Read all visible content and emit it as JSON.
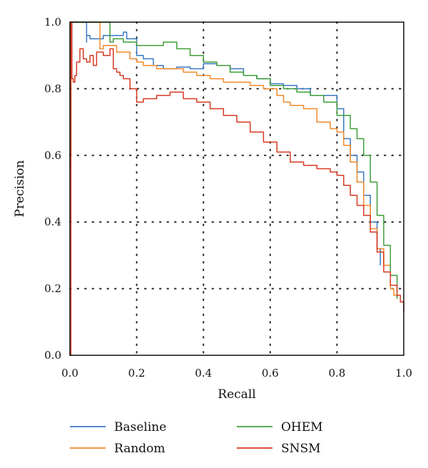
{
  "chart_data": {
    "type": "line",
    "title": "",
    "xlabel": "Recall",
    "ylabel": "Precision",
    "xlim": [
      0.0,
      1.0
    ],
    "ylim": [
      0.0,
      1.0
    ],
    "xticks": [
      "0.0",
      "0.2",
      "0.4",
      "0.6",
      "0.8",
      "1.0"
    ],
    "yticks": [
      "0.0",
      "0.2",
      "0.4",
      "0.6",
      "0.8",
      "1.0"
    ],
    "xtick_values": [
      0.0,
      0.2,
      0.4,
      0.6,
      0.8,
      1.0
    ],
    "ytick_values": [
      0.0,
      0.2,
      0.4,
      0.6,
      0.8,
      1.0
    ],
    "grid": true,
    "grid_style": "dotted",
    "legend_position": "bottom",
    "series": [
      {
        "name": "Baseline",
        "color": "#3a78c3",
        "x": [
          0.0,
          0.002,
          0.005,
          0.04,
          0.05,
          0.05,
          0.06,
          0.1,
          0.15,
          0.16,
          0.17,
          0.2,
          0.22,
          0.25,
          0.28,
          0.32,
          0.36,
          0.4,
          0.44,
          0.48,
          0.52,
          0.56,
          0.6,
          0.64,
          0.68,
          0.72,
          0.76,
          0.8,
          0.82,
          0.84,
          0.86,
          0.88,
          0.9,
          0.92,
          0.93
        ],
        "y": [
          0.58,
          1.0,
          1.0,
          1.0,
          0.94,
          0.96,
          0.95,
          0.96,
          0.96,
          0.97,
          0.95,
          0.9,
          0.89,
          0.87,
          0.86,
          0.865,
          0.86,
          0.875,
          0.87,
          0.86,
          0.84,
          0.83,
          0.815,
          0.81,
          0.8,
          0.78,
          0.78,
          0.74,
          0.65,
          0.6,
          0.55,
          0.48,
          0.4,
          0.32,
          0.27
        ]
      },
      {
        "name": "Random",
        "color": "#f08a2c",
        "x": [
          0.0,
          0.003,
          0.006,
          0.085,
          0.09,
          0.1,
          0.14,
          0.18,
          0.2,
          0.22,
          0.26,
          0.3,
          0.34,
          0.38,
          0.42,
          0.46,
          0.5,
          0.54,
          0.58,
          0.62,
          0.64,
          0.66,
          0.7,
          0.74,
          0.78,
          0.8,
          0.82,
          0.84,
          0.86,
          0.88,
          0.9,
          0.92,
          0.94,
          0.96,
          0.97,
          0.98
        ],
        "y": [
          0.6,
          1.0,
          1.0,
          1.0,
          0.92,
          0.93,
          0.91,
          0.89,
          0.88,
          0.87,
          0.86,
          0.86,
          0.85,
          0.84,
          0.83,
          0.82,
          0.82,
          0.81,
          0.8,
          0.78,
          0.76,
          0.75,
          0.74,
          0.7,
          0.68,
          0.67,
          0.63,
          0.58,
          0.52,
          0.45,
          0.38,
          0.32,
          0.27,
          0.2,
          0.18,
          0.17
        ]
      },
      {
        "name": "OHEM",
        "color": "#3f9e3a",
        "x": [
          0.0,
          0.003,
          0.006,
          0.11,
          0.12,
          0.13,
          0.16,
          0.2,
          0.24,
          0.28,
          0.32,
          0.36,
          0.4,
          0.44,
          0.48,
          0.52,
          0.56,
          0.6,
          0.64,
          0.68,
          0.72,
          0.76,
          0.8,
          0.84,
          0.86,
          0.88,
          0.9,
          0.92,
          0.94,
          0.96,
          0.98
        ],
        "y": [
          0.6,
          1.0,
          1.0,
          1.0,
          0.94,
          0.95,
          0.94,
          0.93,
          0.93,
          0.94,
          0.92,
          0.9,
          0.88,
          0.87,
          0.85,
          0.84,
          0.83,
          0.81,
          0.8,
          0.79,
          0.78,
          0.76,
          0.72,
          0.68,
          0.65,
          0.6,
          0.52,
          0.42,
          0.33,
          0.24,
          0.17
        ]
      },
      {
        "name": "SNSM",
        "color": "#d63a24",
        "x": [
          0.0,
          0.003,
          0.006,
          0.01,
          0.015,
          0.02,
          0.03,
          0.04,
          0.05,
          0.06,
          0.07,
          0.08,
          0.1,
          0.12,
          0.13,
          0.14,
          0.15,
          0.16,
          0.18,
          0.2,
          0.22,
          0.26,
          0.3,
          0.34,
          0.38,
          0.42,
          0.46,
          0.5,
          0.54,
          0.58,
          0.62,
          0.66,
          0.7,
          0.74,
          0.78,
          0.8,
          0.82,
          0.84,
          0.86,
          0.88,
          0.9,
          0.92,
          0.94,
          0.96,
          0.98,
          0.99,
          1.0
        ],
        "y": [
          0.0,
          1.0,
          0.83,
          0.82,
          0.84,
          0.88,
          0.92,
          0.89,
          0.88,
          0.9,
          0.87,
          0.91,
          0.9,
          0.92,
          0.86,
          0.85,
          0.84,
          0.83,
          0.8,
          0.76,
          0.77,
          0.78,
          0.79,
          0.77,
          0.76,
          0.74,
          0.72,
          0.7,
          0.67,
          0.64,
          0.61,
          0.58,
          0.57,
          0.56,
          0.55,
          0.54,
          0.51,
          0.48,
          0.45,
          0.42,
          0.37,
          0.31,
          0.25,
          0.21,
          0.18,
          0.16,
          0.13
        ]
      }
    ]
  }
}
